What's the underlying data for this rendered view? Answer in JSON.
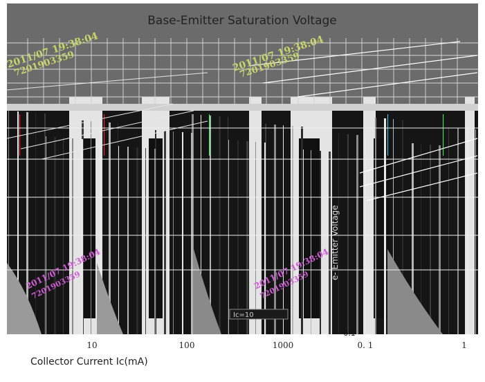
{
  "chart_data": {
    "type": "line",
    "title": "Base-Emitter Saturation Voltage",
    "xlabel": "Collector Current   Ic(mA)",
    "x_scale": "log",
    "x_ticks": [
      "10",
      "100",
      "1000"
    ],
    "secondary_x_ticks": [
      "0. 1",
      "1"
    ],
    "ylabel_inset": "e- Emitter Voltage",
    "y_tick_inset": "0.1",
    "legend_inset": "Ic=10",
    "grid": true,
    "stamps": [
      "2011/07 19:38:04",
      "7201903359"
    ],
    "colors": {
      "plot_bg": "#151515",
      "frame_bg": "#6b6b6b",
      "grid": "#ffffff",
      "stamp_green": "#c6d66a",
      "stamp_magenta": "#d15bd6",
      "title": "#222222"
    }
  }
}
